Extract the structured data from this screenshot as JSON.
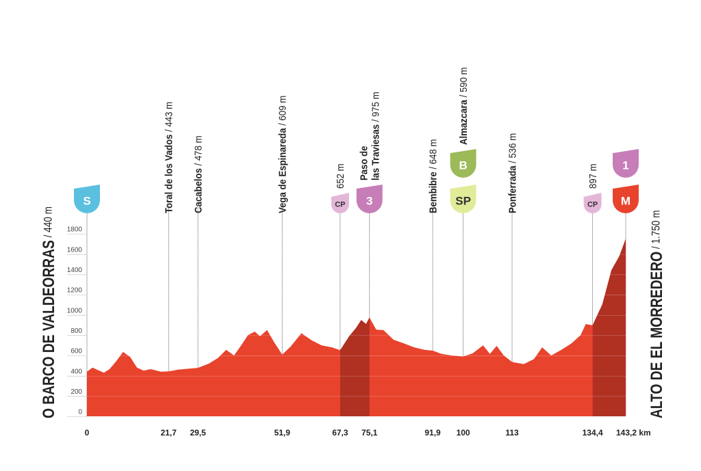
{
  "chart_data": {
    "type": "area",
    "color": "#e8432d",
    "climb_color": "#b03022",
    "x": [
      0,
      1.5,
      3.3,
      4.5,
      6,
      7.8,
      9.6,
      11.5,
      13.3,
      15.1,
      16.9,
      19.7,
      21.7,
      24.2,
      29.5,
      32.4,
      34.8,
      37,
      39.1,
      41,
      42.8,
      44.6,
      46,
      47.9,
      49.7,
      51.9,
      54.2,
      57,
      59.7,
      62.4,
      65.1,
      67.3,
      69.7,
      71.5,
      72.9,
      74.2,
      75.1,
      76.9,
      78.8,
      81.5,
      84.2,
      87,
      89.7,
      91.9,
      94.3,
      97,
      100,
      102.5,
      105.3,
      107.1,
      108.9,
      110.8,
      113,
      116.1,
      118.8,
      121,
      123.4,
      126.1,
      128.8,
      131.2,
      132.6,
      134.4,
      137,
      139.4,
      141.5,
      143.2
    ],
    "values": [
      440,
      480,
      450,
      430,
      465,
      545,
      635,
      585,
      480,
      450,
      465,
      440,
      443,
      460,
      478,
      520,
      575,
      655,
      600,
      700,
      800,
      835,
      790,
      850,
      735,
      609,
      690,
      820,
      750,
      700,
      680,
      652,
      790,
      870,
      950,
      910,
      975,
      855,
      850,
      755,
      720,
      680,
      655,
      648,
      615,
      600,
      590,
      620,
      700,
      615,
      695,
      600,
      536,
      515,
      565,
      680,
      600,
      655,
      720,
      800,
      910,
      897,
      1105,
      1440,
      1580,
      1750
    ],
    "xlim": [
      0,
      143.2
    ],
    "ylim": [
      0,
      1800
    ],
    "yticks": [
      0,
      200,
      400,
      600,
      800,
      1000,
      1200,
      1400,
      1600,
      1800
    ],
    "xticks": [
      0,
      {
        "value": 21.7,
        "label": "21,7"
      },
      {
        "value": 29.5,
        "label": "29,5"
      },
      {
        "value": 51.9,
        "label": "51,9"
      },
      {
        "value": 67.3,
        "label": "67,3"
      },
      {
        "value": 75.1,
        "label": "75,1"
      },
      {
        "value": 91.9,
        "label": "91,9"
      },
      100,
      113,
      {
        "value": 134.4,
        "label": "134,4"
      },
      {
        "value": 143.2,
        "label": "143,2 km"
      }
    ],
    "grid": true,
    "climbs": [
      [
        67.3,
        75.1
      ],
      [
        134.4,
        143.2
      ]
    ],
    "start": {
      "name": "O BARCO DE VALDEORRAS",
      "altitude": "/ 440 m"
    },
    "finish": {
      "name": "ALTO DE EL MORREDERO",
      "altitude": "/ 1.750 m"
    },
    "waypoints": [
      {
        "km": 21.7,
        "name_lines": [
          "Toral de los Vados"
        ],
        "altitude": "/ 443 m"
      },
      {
        "km": 29.5,
        "name_lines": [
          "Cacabelos"
        ],
        "altitude": "/ 478 m"
      },
      {
        "km": 51.9,
        "name_lines": [
          "Vega de Espinareda"
        ],
        "altitude": "/ 609 m"
      },
      {
        "km": 67.3,
        "name_lines": [],
        "altitude": "652 m"
      },
      {
        "km": 75.1,
        "name_lines": [
          "Paso de",
          "las Traviesas"
        ],
        "altitude": "/ 975 m"
      },
      {
        "km": 91.9,
        "name_lines": [
          "Bembibre"
        ],
        "altitude": "/ 648 m"
      },
      {
        "km": 100,
        "name_lines": [
          "Almazcara"
        ],
        "altitude": "/ 590 m"
      },
      {
        "km": 113,
        "name_lines": [
          "Ponferrada"
        ],
        "altitude": "/ 536 m"
      },
      {
        "km": 134.4,
        "name_lines": [],
        "altitude": "897 m"
      }
    ],
    "badges": [
      {
        "km": 0,
        "label": "S",
        "color": "#5bbfe0",
        "text_color": "#ffffff",
        "size": "large"
      },
      {
        "km": 67.3,
        "label": "CP",
        "color": "#e4b6d8",
        "text_color": "#333333",
        "size": "small"
      },
      {
        "km": 75.1,
        "label": "3",
        "color": "#c77db8",
        "text_color": "#ffffff",
        "size": "large"
      },
      {
        "km": 100,
        "label": "SP",
        "color": "#e2eb98",
        "text_color": "#333333",
        "size": "large"
      },
      {
        "km": 100,
        "label": "B",
        "color": "#9cba58",
        "text_color": "#ffffff",
        "size": "large"
      },
      {
        "km": 134.4,
        "label": "CP",
        "color": "#e4b6d8",
        "text_color": "#333333",
        "size": "small"
      },
      {
        "km": 143.2,
        "label": "M",
        "color": "#e8432d",
        "text_color": "#ffffff",
        "size": "large"
      },
      {
        "km": 143.2,
        "label": "1",
        "color": "#c77db8",
        "text_color": "#ffffff",
        "size": "large"
      }
    ]
  }
}
